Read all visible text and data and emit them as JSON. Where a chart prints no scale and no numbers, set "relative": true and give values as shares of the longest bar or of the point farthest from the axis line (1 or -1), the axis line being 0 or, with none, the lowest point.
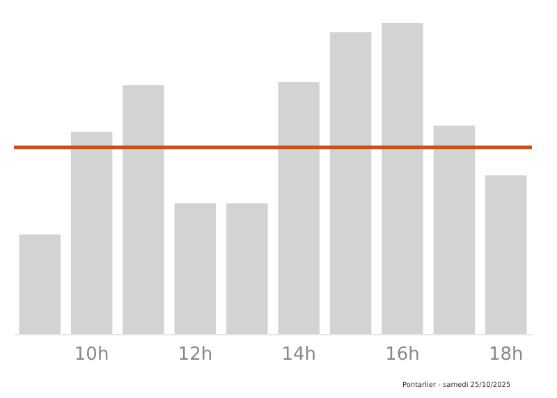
{
  "chart_data": {
    "type": "bar",
    "relative": true,
    "categories": [
      null,
      "10h",
      null,
      "12h",
      null,
      "14h",
      null,
      "16h",
      null,
      "18h"
    ],
    "values": [
      0.32,
      0.65,
      0.8,
      0.42,
      0.42,
      0.81,
      0.97,
      1,
      0.67,
      0.51
    ],
    "color": "#d3d3d3",
    "ref_lines": [
      {
        "axis": "y",
        "value": 0.6,
        "label": null,
        "color": "#c9521c"
      }
    ],
    "annotations": [
      "Pontarlier - samedi 25/10/2025"
    ]
  }
}
